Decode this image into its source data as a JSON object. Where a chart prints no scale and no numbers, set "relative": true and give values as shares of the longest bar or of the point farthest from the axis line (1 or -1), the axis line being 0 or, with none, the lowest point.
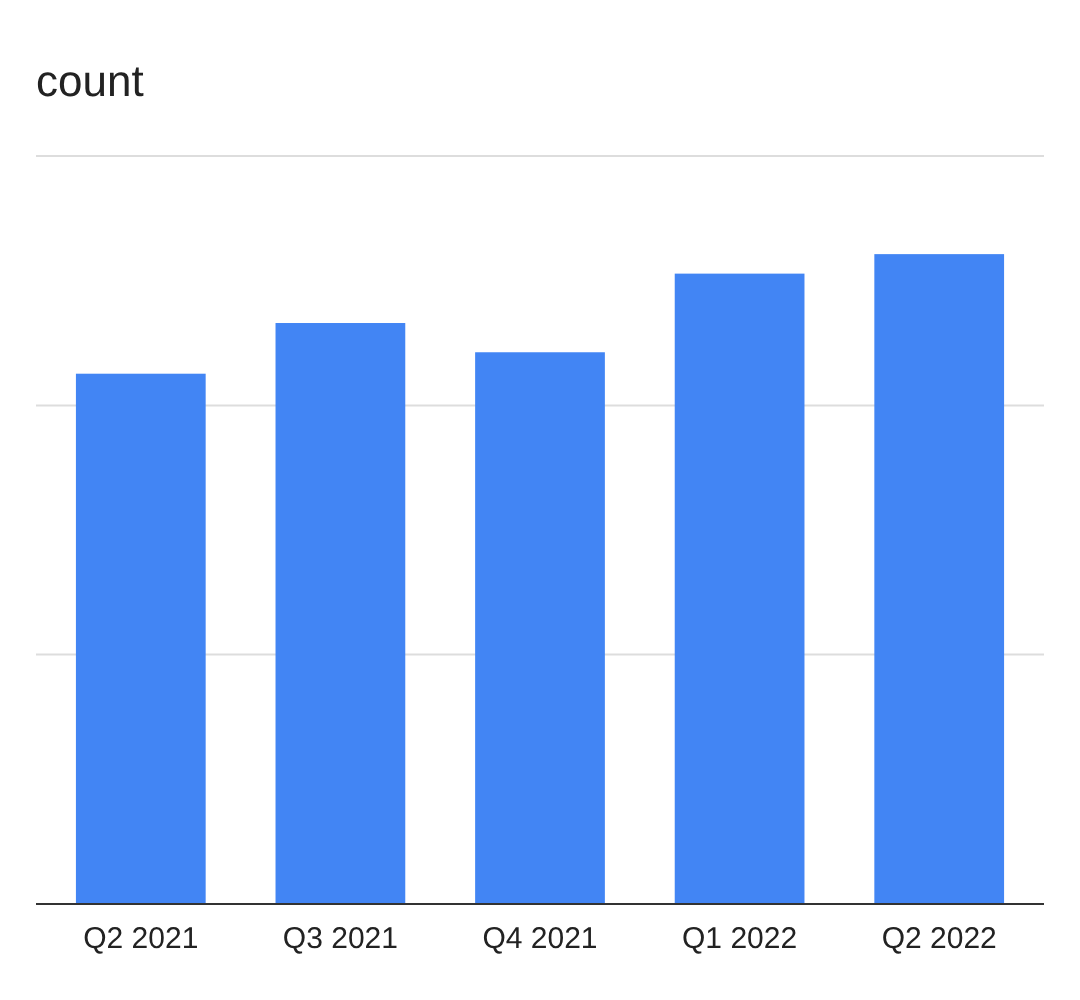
{
  "chart_data": {
    "type": "bar",
    "title": "count",
    "relative": true,
    "categories": [
      "Q2 2021",
      "Q3 2021",
      "Q4 2021",
      "Q1 2022",
      "Q2 2022"
    ],
    "values": [
      0.816,
      0.894,
      0.849,
      0.97,
      1
    ],
    "color": "#4285f4",
    "ref_lines": [
      {
        "axis": "y",
        "value": 0.384,
        "color": "#dddddd"
      },
      {
        "axis": "y",
        "value": 0.767,
        "color": "#dddddd"
      },
      {
        "axis": "y",
        "value": 1.151,
        "color": "#dddddd"
      }
    ]
  }
}
